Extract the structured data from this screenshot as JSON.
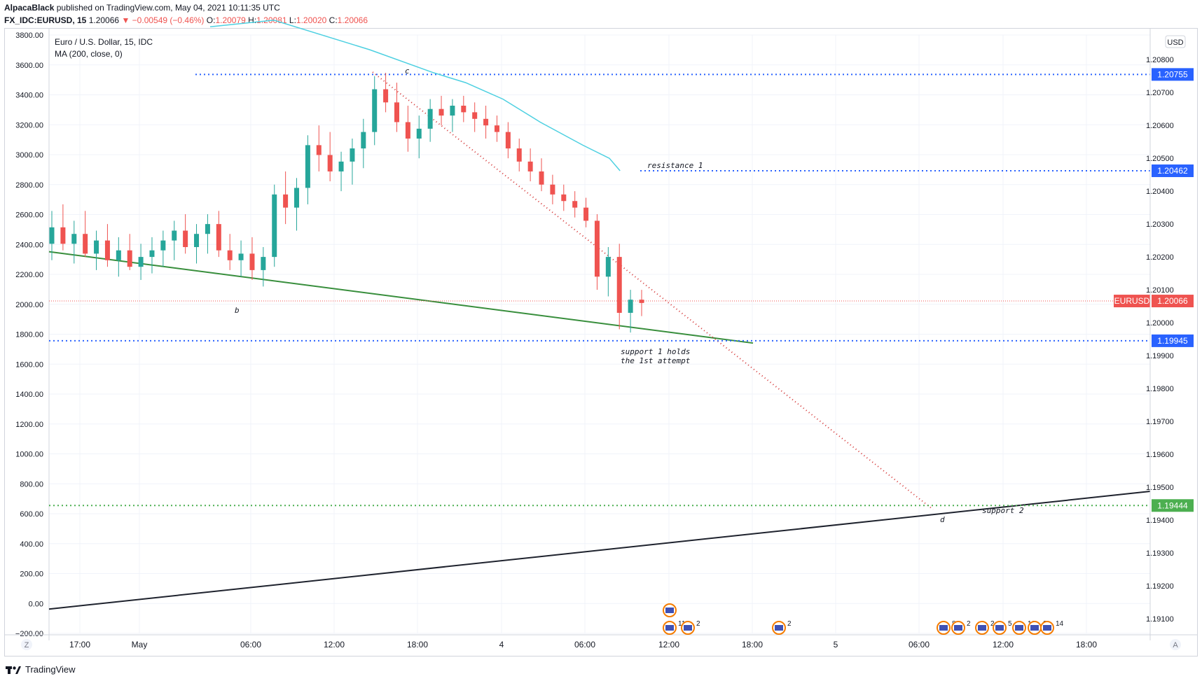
{
  "header": {
    "author": "AlpacaBlack",
    "published_text": "published on TradingView.com, May 04, 2021 10:11:35 UTC",
    "symbol": "FX_IDC:EURUSD, 15",
    "last": "1.20066",
    "change": "−0.00549 (−0.46%)",
    "o_label": "O:",
    "o_value": "1.20079",
    "h_label": "H:",
    "h_value": "1.20081",
    "l_label": "L:",
    "l_value": "1.20020",
    "c_label": "C:",
    "c_value": "1.20066"
  },
  "legend": {
    "title": "Euro / U.S. Dollar, 15, IDC",
    "indicator": "MA (200, close, 0)"
  },
  "currency_badge": "USD",
  "axis_mode_left": "Z",
  "axis_mode_right": "A",
  "footer_brand": "TradingView",
  "colors": {
    "up": "#26a69a",
    "down": "#ef5350",
    "ma": "#4dd0e1",
    "level": "#2962ff",
    "support2_level": "#4caf50",
    "green_trend": "#388e3c",
    "black_trend": "#1e222d",
    "projection": "#d32f2f"
  },
  "chart_data": {
    "type": "candlestick",
    "title": "Euro / U.S. Dollar, 15, IDC",
    "x_axis": {
      "ticks": [
        "17:00",
        "May",
        "06:00",
        "12:00",
        "18:00",
        "4",
        "06:00",
        "12:00",
        "18:00",
        "5",
        "06:00",
        "12:00",
        "18:00"
      ]
    },
    "y_right": {
      "range": [
        1.19055,
        1.20875
      ],
      "ticks": [
        "1.20800",
        "1.20700",
        "1.20600",
        "1.20500",
        "1.20400",
        "1.20300",
        "1.20200",
        "1.20100",
        "1.20000",
        "1.19900",
        "1.19800",
        "1.19700",
        "1.19600",
        "1.19500",
        "1.19400",
        "1.19300",
        "1.19200",
        "1.19100"
      ]
    },
    "y_left": {
      "range": [
        -200,
        3800
      ],
      "ticks": [
        "3800.00",
        "3600.00",
        "3400.00",
        "3200.00",
        "3000.00",
        "2800.00",
        "2600.00",
        "2400.00",
        "2200.00",
        "2000.00",
        "1800.00",
        "1600.00",
        "1400.00",
        "1200.00",
        "1000.00",
        "800.00",
        "600.00",
        "400.00",
        "200.00",
        "0.00",
        "−200.00"
      ]
    },
    "price_levels": [
      {
        "value": 1.20755,
        "label": "1.20755",
        "kind": "resistance"
      },
      {
        "value": 1.20462,
        "label": "1.20462",
        "kind": "resistance"
      },
      {
        "value": 1.19945,
        "label": "1.19945",
        "kind": "support"
      },
      {
        "value": 1.19444,
        "label": "1.19444",
        "kind": "support"
      }
    ],
    "last_price": {
      "symbol": "EURUSD",
      "value": "1.20066"
    },
    "annotations": [
      {
        "text": "c"
      },
      {
        "text": "b"
      },
      {
        "text": "d"
      },
      {
        "text": "resistance 1"
      },
      {
        "text": "support 1 holds"
      },
      {
        "text": "the 1st attempt"
      },
      {
        "text": "support 2"
      }
    ],
    "events": [
      {
        "label": "11"
      },
      {
        "label": "2"
      },
      {
        "label": "2"
      },
      {
        "label": "8"
      },
      {
        "label": "2"
      },
      {
        "label": "2"
      },
      {
        "label": "5"
      },
      {
        "label": "10"
      },
      {
        "label": "2"
      },
      {
        "label": "14"
      }
    ],
    "ma_points": [
      [
        0.12,
        1.2092
      ],
      [
        0.3,
        1.2083
      ],
      [
        0.42,
        1.2076
      ],
      [
        0.48,
        1.2073
      ],
      [
        0.55,
        1.2068
      ],
      [
        0.62,
        1.2061
      ],
      [
        0.7,
        1.2054
      ],
      [
        0.75,
        1.205
      ],
      [
        0.77,
        1.20462
      ]
    ],
    "candles_ohlc": [
      [
        1.2024,
        1.2034,
        1.2019,
        1.2029
      ],
      [
        1.2029,
        1.2036,
        1.2022,
        1.2024
      ],
      [
        1.2024,
        1.2031,
        1.2018,
        1.2027
      ],
      [
        1.2027,
        1.2034,
        1.202,
        1.2021
      ],
      [
        1.2021,
        1.2028,
        1.2016,
        1.2025
      ],
      [
        1.2025,
        1.203,
        1.2017,
        1.2019
      ],
      [
        1.2019,
        1.2026,
        1.2014,
        1.2022
      ],
      [
        1.2022,
        1.2027,
        1.2016,
        1.2017
      ],
      [
        1.2017,
        1.2024,
        1.2013,
        1.202
      ],
      [
        1.202,
        1.2026,
        1.2015,
        1.2022
      ],
      [
        1.2022,
        1.2028,
        1.2017,
        1.2025
      ],
      [
        1.2025,
        1.2031,
        1.2019,
        1.2028
      ],
      [
        1.2028,
        1.2033,
        1.2021,
        1.2023
      ],
      [
        1.2023,
        1.203,
        1.2018,
        1.2027
      ],
      [
        1.2027,
        1.2033,
        1.2021,
        1.203
      ],
      [
        1.203,
        1.2034,
        1.202,
        1.2022
      ],
      [
        1.2022,
        1.2027,
        1.2016,
        1.2019
      ],
      [
        1.2019,
        1.2025,
        1.2014,
        1.2021
      ],
      [
        1.2021,
        1.2026,
        1.2013,
        1.2016
      ],
      [
        1.2016,
        1.2023,
        1.2011,
        1.202
      ],
      [
        1.202,
        1.2042,
        1.2017,
        1.2039
      ],
      [
        1.2039,
        1.2046,
        1.203,
        1.2035
      ],
      [
        1.2035,
        1.2044,
        1.2028,
        1.2041
      ],
      [
        1.2041,
        1.2057,
        1.2036,
        1.2054
      ],
      [
        1.2054,
        1.206,
        1.2046,
        1.2051
      ],
      [
        1.2051,
        1.2058,
        1.2043,
        1.2046
      ],
      [
        1.2046,
        1.2052,
        1.204,
        1.2049
      ],
      [
        1.2049,
        1.2056,
        1.2042,
        1.2053
      ],
      [
        1.2053,
        1.2062,
        1.2047,
        1.2058
      ],
      [
        1.2058,
        1.2075,
        1.2054,
        1.2071
      ],
      [
        1.2071,
        1.2076,
        1.2064,
        1.2067
      ],
      [
        1.2067,
        1.2073,
        1.2058,
        1.2061
      ],
      [
        1.2061,
        1.2066,
        1.2052,
        1.2056
      ],
      [
        1.2056,
        1.2063,
        1.205,
        1.2059
      ],
      [
        1.2059,
        1.2068,
        1.2055,
        1.2065
      ],
      [
        1.2065,
        1.2069,
        1.206,
        1.2063
      ],
      [
        1.2063,
        1.2068,
        1.2058,
        1.2066
      ],
      [
        1.2066,
        1.2069,
        1.2061,
        1.2064
      ],
      [
        1.2064,
        1.2067,
        1.2058,
        1.2062
      ],
      [
        1.2062,
        1.2066,
        1.2056,
        1.206
      ],
      [
        1.206,
        1.2063,
        1.2055,
        1.2058
      ],
      [
        1.2058,
        1.2061,
        1.205,
        1.2053
      ],
      [
        1.2053,
        1.2056,
        1.2046,
        1.2049
      ],
      [
        1.2049,
        1.2053,
        1.2043,
        1.2046
      ],
      [
        1.2046,
        1.205,
        1.204,
        1.2042
      ],
      [
        1.2042,
        1.2045,
        1.2036,
        1.2039
      ],
      [
        1.2039,
        1.2042,
        1.2034,
        1.2037
      ],
      [
        1.2037,
        1.204,
        1.2032,
        1.2035
      ],
      [
        1.2035,
        1.2038,
        1.2029,
        1.2031
      ],
      [
        1.2031,
        1.2033,
        1.201,
        1.2014
      ],
      [
        1.2014,
        1.2023,
        1.2008,
        1.202
      ],
      [
        1.202,
        1.2024,
        1.1998,
        1.2003
      ],
      [
        1.2003,
        1.201,
        1.1997,
        1.2007
      ],
      [
        1.2007,
        1.201,
        1.2002,
        1.2006
      ]
    ]
  }
}
